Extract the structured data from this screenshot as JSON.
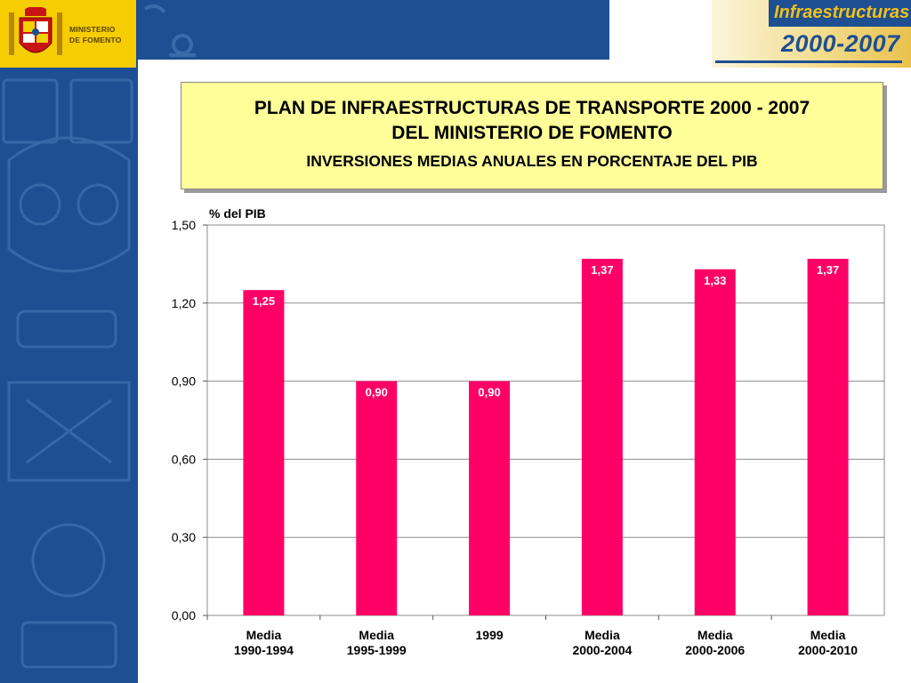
{
  "logo": {
    "line1": "MINISTERIO",
    "line2": "DE FOMENTO"
  },
  "brand": {
    "line1": "Infraestructuras",
    "line2": "2000-2007"
  },
  "title": {
    "line1": "PLAN DE INFRAESTRUCTURAS DE TRANSPORTE 2000 - 2007",
    "line2": "DEL MINISTERIO DE FOMENTO",
    "line3": "INVERSIONES MEDIAS ANUALES EN PORCENTAJE DEL PIB"
  },
  "colors": {
    "bar": "#ff0066",
    "sidebar": "#1d4f92",
    "logo_bg": "#f5cd00",
    "title_bg": "#ffff99",
    "plot_bg": "#ffffff",
    "grid": "#8c8c8c"
  },
  "chart_data": {
    "type": "bar",
    "ylabel": "% del PIB",
    "ylim": [
      0,
      1.5
    ],
    "yticks": [
      "0,00",
      "0,30",
      "0,60",
      "0,90",
      "1,20",
      "1,50"
    ],
    "grid": true,
    "categories": [
      [
        "Media",
        "1990-1994"
      ],
      [
        "Media",
        "1995-1999"
      ],
      [
        "1999"
      ],
      [
        "Media",
        "2000-2004"
      ],
      [
        "Media",
        "2000-2006"
      ],
      [
        "Media",
        "2000-2010"
      ]
    ],
    "values": [
      1.25,
      0.9,
      0.9,
      1.37,
      1.33,
      1.37
    ],
    "data_labels": [
      "1,25",
      "0,90",
      "0,90",
      "1,37",
      "1,33",
      "1,37"
    ]
  }
}
